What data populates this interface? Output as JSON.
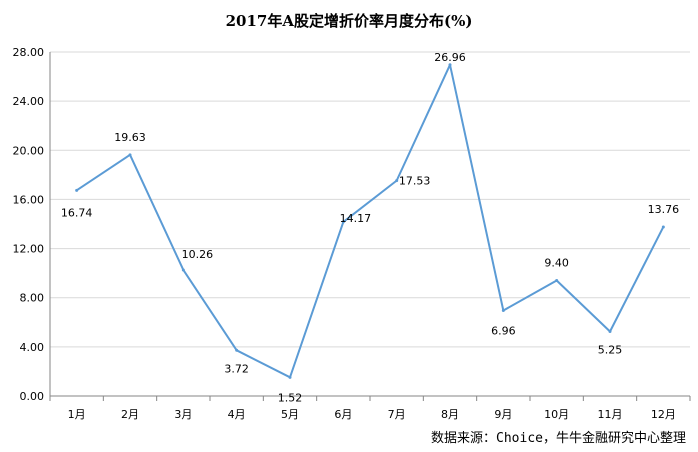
{
  "chart_data": {
    "type": "line",
    "title": "2017年A股定增折价率月度分布(%)",
    "categories": [
      "1月",
      "2月",
      "3月",
      "4月",
      "5月",
      "6月",
      "7月",
      "8月",
      "9月",
      "10月",
      "11月",
      "12月"
    ],
    "series": [
      {
        "values": [
          16.74,
          19.63,
          10.26,
          3.72,
          1.52,
          14.17,
          17.53,
          26.96,
          6.96,
          9.4,
          5.25,
          13.76
        ]
      }
    ],
    "value_labels": [
      "16.74",
      "19.63",
      "10.26",
      "3.72",
      "1.52",
      "14.17",
      "17.53",
      "26.96",
      "6.96",
      "9.40",
      "5.25",
      "13.76"
    ],
    "yticks": [
      "0.00",
      "4.00",
      "8.00",
      "12.00",
      "16.00",
      "20.00",
      "24.00",
      "28.00"
    ],
    "ylim": [
      0,
      28
    ],
    "grid": true,
    "legend": "none",
    "line_color": "#5b9bd5",
    "source": "数据来源：Choice，牛牛金融研究中心整理"
  }
}
